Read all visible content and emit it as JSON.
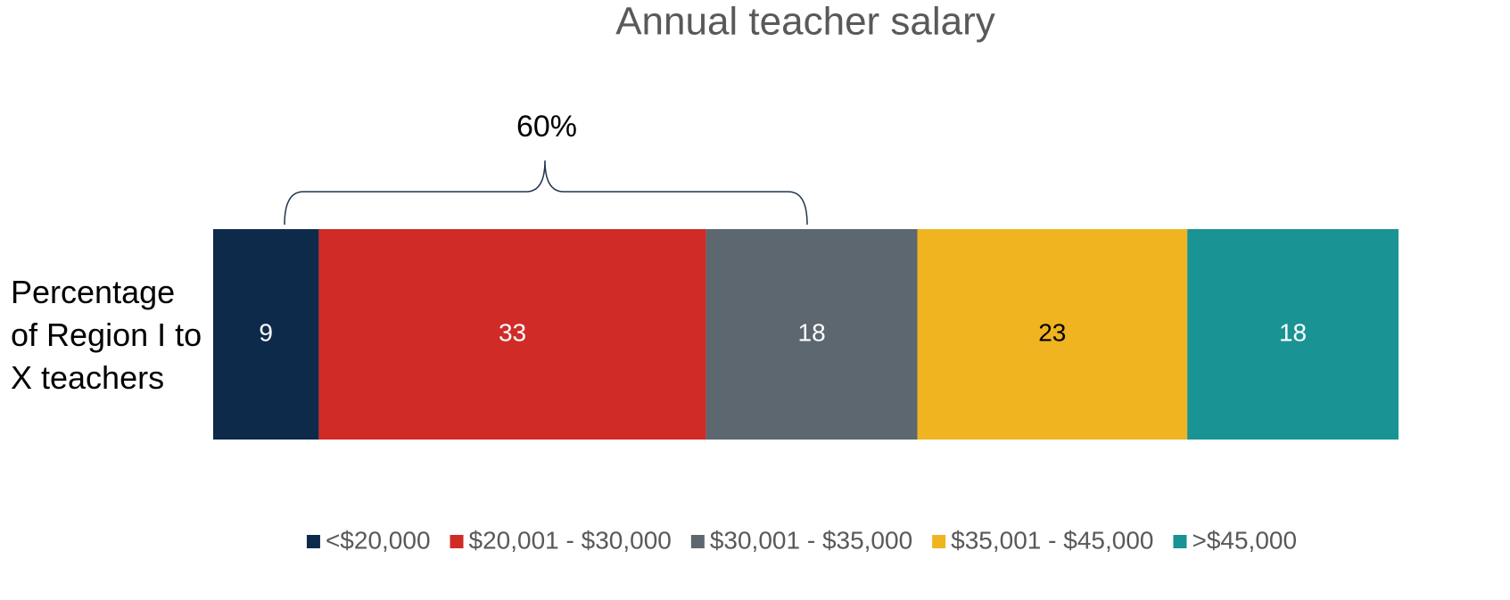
{
  "chart_data": {
    "type": "stacked_bar_horizontal",
    "title": "Annual teacher salary",
    "categories": [
      "Percentage of Region I to X teachers"
    ],
    "annotation": "60%",
    "series": [
      {
        "name": "<$20,000",
        "color": "#0e2a4a",
        "values": [
          9
        ]
      },
      {
        "name": "$20,001 - $30,000",
        "color": "#d02b27",
        "values": [
          33
        ]
      },
      {
        "name": "$30,001 - $35,000",
        "color": "#5c6770",
        "values": [
          18
        ]
      },
      {
        "name": "$35,001 - $45,000",
        "color": "#efb41f",
        "values": [
          23
        ]
      },
      {
        "name": ">$45,000",
        "color": "#199393",
        "values": [
          18
        ]
      }
    ],
    "legend": "bottom"
  }
}
